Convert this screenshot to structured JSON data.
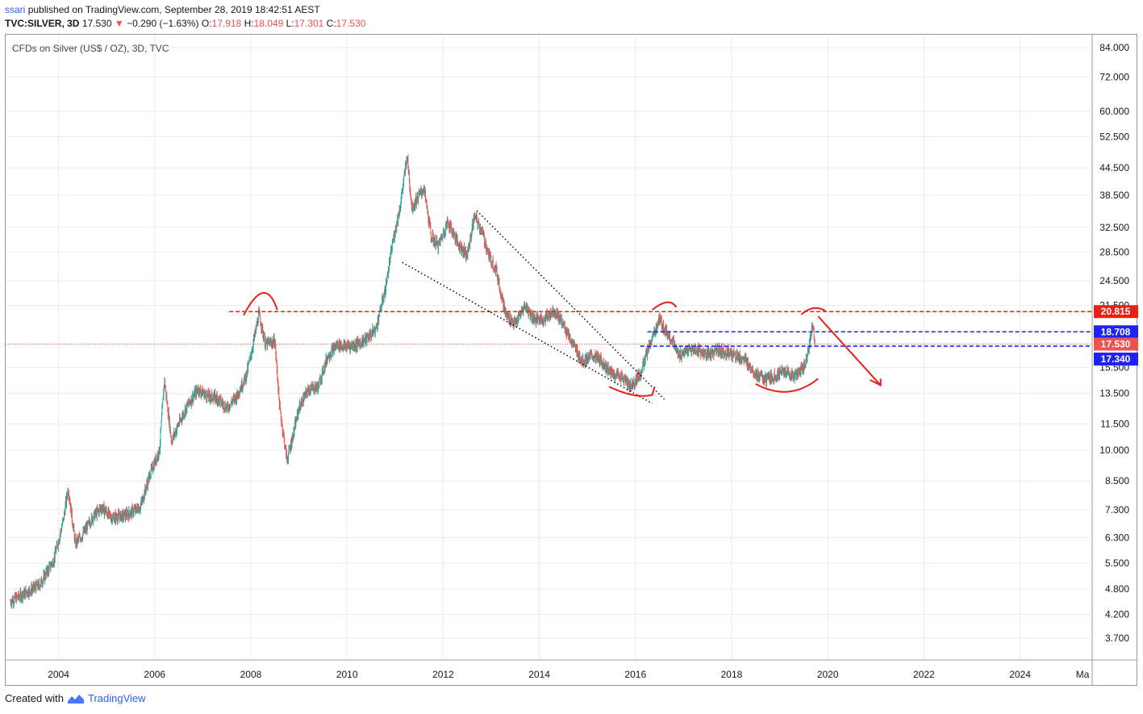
{
  "header": {
    "user": "ssari",
    "published": "published on TradingView.com, September 28, 2019 18:42:51 AEST",
    "symbol": "TVC:SILVER, 3D",
    "last": "17.530",
    "change_arrow": "▼",
    "change": "−0.290 (−1.63%)",
    "o_label": "O:",
    "o": "17.918",
    "h_label": "H:",
    "h": "18.049",
    "l_label": "L:",
    "l": "17.301",
    "c_label": "C:",
    "c": "17.530"
  },
  "instrument_title": "CFDs on Silver (US$ / OZ), 3D, TVC",
  "footer": {
    "created": "Created with",
    "brand": "TradingView"
  },
  "colors": {
    "up": "#26a69a",
    "down": "#ef5350",
    "annotation_red": "#e8201a",
    "blue_line": "#1e23f5",
    "red_line": "#e8201a",
    "grid": "#e9ebf0"
  },
  "chart_data": {
    "type": "line",
    "title": "CFDs on Silver (US$ / OZ), 3D, TVC",
    "y_scale": "log",
    "ylim": [
      3.3,
      90
    ],
    "xlim": [
      2002.9,
      2025.5
    ],
    "x_ticks": [
      "2004",
      "2006",
      "2008",
      "2010",
      "2012",
      "2014",
      "2016",
      "2018",
      "2020",
      "2022",
      "2024",
      "Ma"
    ],
    "y_ticks": [
      "84.000",
      "72.000",
      "60.000",
      "52.500",
      "44.500",
      "38.500",
      "32.500",
      "28.500",
      "24.500",
      "21.500",
      "15.500",
      "13.500",
      "11.500",
      "10.000",
      "8.500",
      "7.300",
      "6.300",
      "5.500",
      "4.800",
      "4.200",
      "3.700"
    ],
    "price_labels": [
      {
        "value": "20.815",
        "color": "#e8201a"
      },
      {
        "value": "18.708",
        "color": "#1e23f5"
      },
      {
        "value": "17.530",
        "color": "#ef5350"
      },
      {
        "value": "17.340",
        "color": "#1e23f5"
      }
    ],
    "series": [
      {
        "x": [
          2003.0,
          2003.3,
          2003.6,
          2003.9,
          2004.1,
          2004.2,
          2004.35,
          2004.5,
          2004.7,
          2004.9,
          2005.1,
          2005.4,
          2005.7,
          2005.9,
          2006.1,
          2006.2,
          2006.35,
          2006.5,
          2006.7,
          2006.9,
          2007.1,
          2007.3,
          2007.5,
          2007.7,
          2007.9,
          2008.0,
          2008.17,
          2008.3,
          2008.5,
          2008.6,
          2008.75,
          2008.85,
          2009.0,
          2009.2,
          2009.4,
          2009.6,
          2009.8,
          2009.95,
          2010.2,
          2010.4,
          2010.6,
          2010.8,
          2010.95,
          2011.1,
          2011.25,
          2011.35,
          2011.5,
          2011.6,
          2011.75,
          2011.9,
          2012.1,
          2012.3,
          2012.5,
          2012.65,
          2012.8,
          2012.95,
          2013.1,
          2013.3,
          2013.5,
          2013.7,
          2013.9,
          2014.1,
          2014.3,
          2014.5,
          2014.7,
          2014.9,
          2015.1,
          2015.3,
          2015.5,
          2015.7,
          2015.9,
          2016.1,
          2016.3,
          2016.5,
          2016.6,
          2016.75,
          2016.9,
          2017.1,
          2017.3,
          2017.5,
          2017.7,
          2017.9,
          2018.1,
          2018.3,
          2018.5,
          2018.7,
          2018.9,
          2019.1,
          2019.3,
          2019.5,
          2019.6,
          2019.68,
          2019.74
        ],
        "y": [
          4.5,
          4.7,
          4.9,
          5.6,
          6.9,
          8.2,
          6.1,
          6.4,
          7.0,
          7.4,
          7.0,
          7.1,
          7.4,
          8.8,
          10.0,
          14.5,
          10.5,
          11.5,
          12.8,
          13.8,
          13.3,
          13.2,
          12.5,
          13.3,
          14.8,
          16.5,
          20.6,
          17.5,
          17.8,
          12.5,
          9.5,
          10.5,
          12.5,
          13.8,
          14.0,
          16.5,
          17.5,
          17.3,
          17.5,
          18.0,
          19.0,
          23.5,
          30.0,
          36.0,
          47.5,
          36.0,
          38.5,
          40.0,
          31.0,
          29.5,
          33.5,
          30.0,
          28.0,
          34.5,
          32.0,
          28.0,
          26.0,
          20.5,
          19.5,
          21.5,
          20.0,
          20.0,
          21.0,
          19.5,
          17.5,
          16.0,
          16.5,
          16.0,
          15.0,
          14.8,
          14.0,
          15.0,
          17.5,
          20.0,
          19.0,
          18.0,
          16.5,
          17.0,
          17.0,
          16.5,
          17.0,
          16.8,
          16.5,
          16.0,
          15.0,
          14.5,
          14.8,
          15.2,
          14.8,
          15.5,
          17.0,
          19.5,
          17.5
        ]
      }
    ],
    "annotations": [
      {
        "type": "hline",
        "label": "20.815",
        "value": 20.815,
        "color": "#e8201a",
        "style": "dashed"
      },
      {
        "type": "hline",
        "label": "18.708",
        "value": 18.708,
        "color": "#1e23f5",
        "style": "dashed"
      },
      {
        "type": "hline",
        "label": "17.340",
        "value": 17.34,
        "color": "#1e23f5",
        "style": "dashed"
      },
      {
        "type": "hline",
        "label": "17.530",
        "value": 17.53,
        "color": "#ef5350",
        "style": "dotted"
      }
    ]
  }
}
